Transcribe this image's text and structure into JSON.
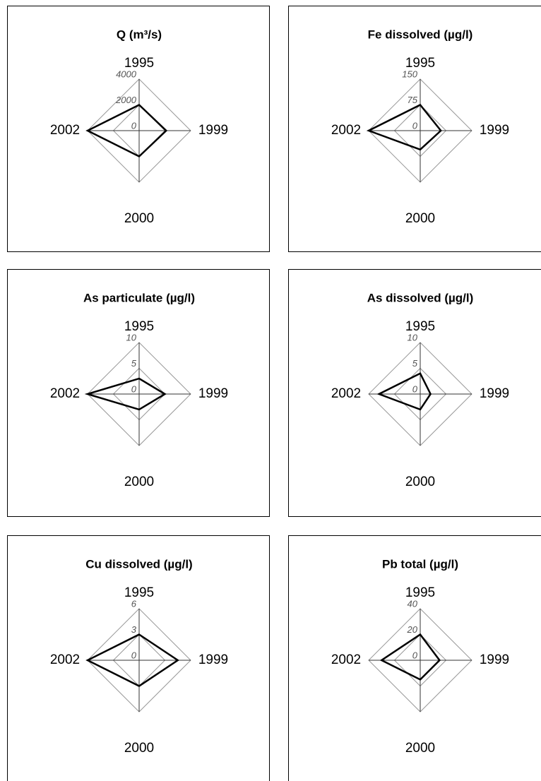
{
  "chart_data": [
    {
      "type": "radar",
      "title": "Q (m³/s)",
      "categories": [
        "1995",
        "1999",
        "2000",
        "2002"
      ],
      "values": [
        2000,
        2100,
        2000,
        4000
      ],
      "ylim": [
        0,
        4000
      ],
      "yticks": [
        0,
        2000,
        4000
      ],
      "color": "#000000"
    },
    {
      "type": "radar",
      "title": "Fe dissolved  (µg/l)",
      "categories": [
        "1995",
        "1999",
        "2000",
        "2002"
      ],
      "values": [
        75,
        60,
        55,
        150
      ],
      "ylim": [
        0,
        150
      ],
      "yticks": [
        0,
        75,
        150
      ],
      "color": "#000000"
    },
    {
      "type": "radar",
      "title": "As particulate  (µg/l)",
      "categories": [
        "1995",
        "1999",
        "2000",
        "2002"
      ],
      "values": [
        3,
        5,
        3,
        10
      ],
      "ylim": [
        0,
        10
      ],
      "yticks": [
        0,
        5,
        10
      ],
      "color": "#000000"
    },
    {
      "type": "radar",
      "title": "As dissolved  (µg/l)",
      "categories": [
        "1995",
        "1999",
        "2000",
        "2002"
      ],
      "values": [
        4,
        2,
        3,
        8
      ],
      "ylim": [
        0,
        10
      ],
      "yticks": [
        0,
        5,
        10
      ],
      "color": "#000000"
    },
    {
      "type": "radar",
      "title": "Cu dissolved  (µg/l)",
      "categories": [
        "1995",
        "1999",
        "2000",
        "2002"
      ],
      "values": [
        3,
        4.5,
        3,
        6
      ],
      "ylim": [
        0,
        6
      ],
      "yticks": [
        0,
        3,
        6
      ],
      "color": "#000000"
    },
    {
      "type": "radar",
      "title": "Pb total (µg/l)",
      "categories": [
        "1995",
        "1999",
        "2000",
        "2002"
      ],
      "values": [
        20,
        15,
        15,
        30
      ],
      "ylim": [
        0,
        40
      ],
      "yticks": [
        0,
        20,
        40
      ],
      "color": "#000000"
    }
  ]
}
